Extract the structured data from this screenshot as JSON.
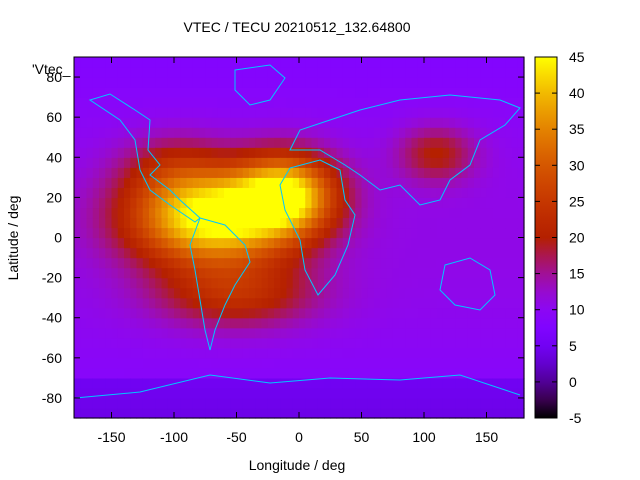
{
  "chart_data": {
    "type": "heatmap",
    "title": "VTEC / TECU 20210512_132.64800",
    "key_label": "'Vtec_",
    "xlabel": "Longitude / deg",
    "ylabel": "Latitude / deg",
    "xlim": [
      -180,
      180
    ],
    "ylim": [
      -90,
      90
    ],
    "x_ticks": [
      -150,
      -100,
      -50,
      0,
      50,
      100,
      150
    ],
    "y_ticks": [
      -80,
      -60,
      -40,
      -20,
      0,
      20,
      40,
      60,
      80
    ],
    "colorbar": {
      "min": -5,
      "max": 45,
      "ticks": [
        -5,
        0,
        5,
        10,
        15,
        20,
        25,
        30,
        35,
        40,
        45
      ],
      "palette": "gnuplot-rgbformulae-7-5-15"
    },
    "grid": false,
    "features": [
      {
        "lon": -70,
        "lat": 10,
        "amp": 36,
        "sx": 45,
        "sy": 16
      },
      {
        "lon": -10,
        "lat": 22,
        "amp": 30,
        "sx": 28,
        "sy": 14
      },
      {
        "lon": -50,
        "lat": -28,
        "amp": 12,
        "sx": 45,
        "sy": 12
      },
      {
        "lon": 110,
        "lat": 42,
        "amp": 10,
        "sx": 22,
        "sy": 10
      },
      {
        "lon": -100,
        "lat": 35,
        "amp": 8,
        "sx": 30,
        "sy": 12
      }
    ],
    "baseline": 10
  }
}
